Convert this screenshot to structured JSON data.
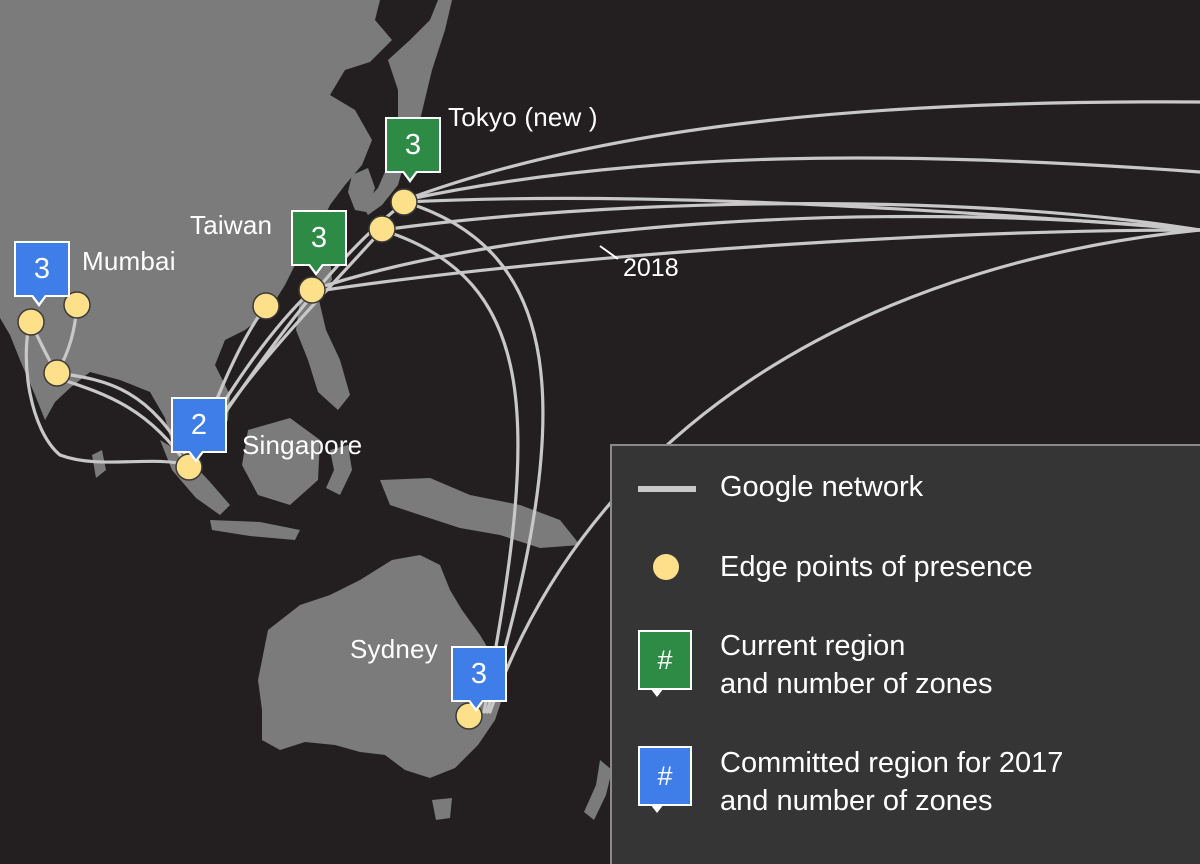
{
  "colors": {
    "background": "#231f20",
    "land": "#7b7b7b",
    "network_line": "#c8c8c8",
    "edge_pop": "#ffe08a",
    "current_region": "#2e8b46",
    "committed_region": "#3f7ee8",
    "legend_bg": "#353535"
  },
  "regions": [
    {
      "name": "Tokyo (new )",
      "zones": "3",
      "status": "current"
    },
    {
      "name": "Taiwan",
      "zones": "3",
      "status": "current"
    },
    {
      "name": "Mumbai",
      "zones": "3",
      "status": "committed"
    },
    {
      "name": "Singapore",
      "zones": "2",
      "status": "committed"
    },
    {
      "name": "Sydney",
      "zones": "3",
      "status": "committed"
    }
  ],
  "route_label": "2018",
  "legend": {
    "network": "Google network",
    "pop": "Edge points of presence",
    "current": "Current region\nand number of zones",
    "committed": "Committed region for 2017\nand number of zones",
    "symbol": "#"
  }
}
